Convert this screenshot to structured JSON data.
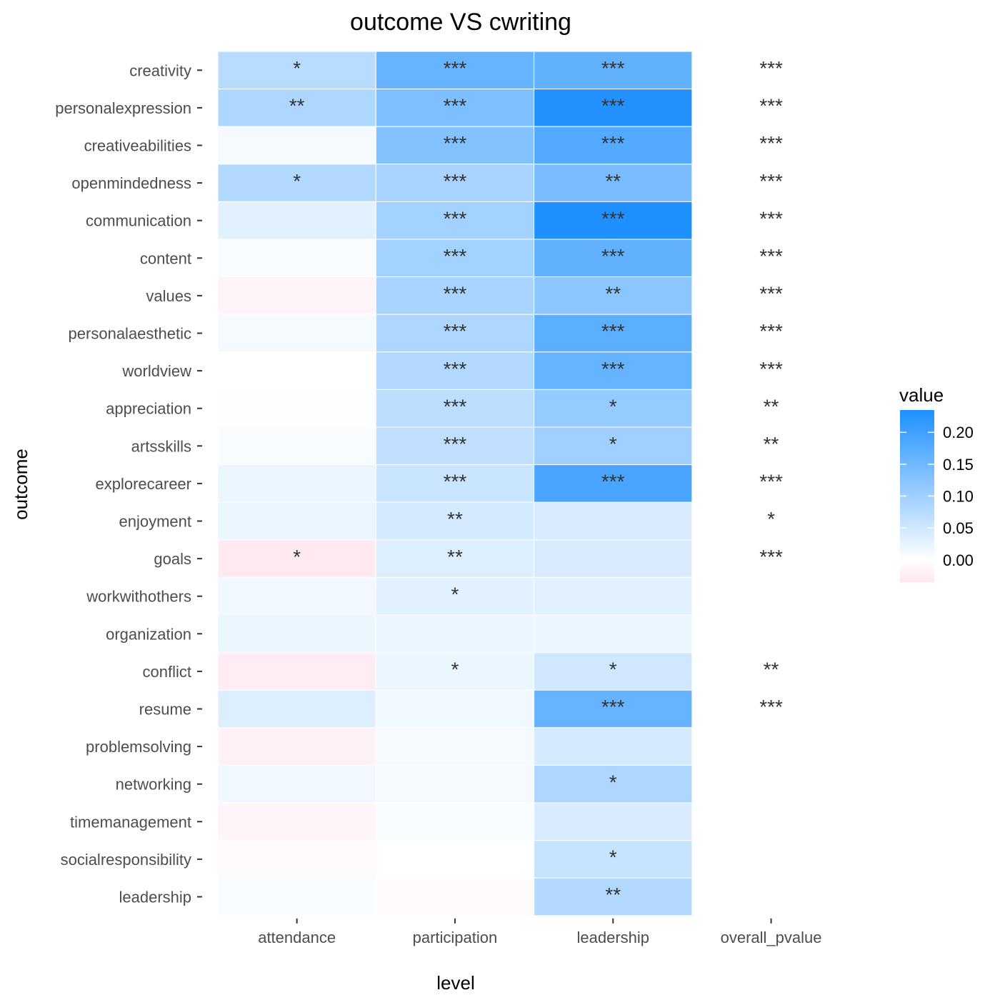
{
  "chart_data": {
    "type": "heatmap",
    "title": "outcome VS cwriting",
    "xlabel": "level",
    "ylabel": "outcome",
    "x_categories": [
      "attendance",
      "participation",
      "leadership",
      "overall_pvalue"
    ],
    "y_categories": [
      "creativity",
      "personalexpression",
      "creativeabilities",
      "openmindedness",
      "communication",
      "content",
      "values",
      "personalaesthetic",
      "worldview",
      "appreciation",
      "artsskills",
      "explorecareer",
      "enjoyment",
      "goals",
      "workwithothers",
      "organization",
      "conflict",
      "resume",
      "problemsolving",
      "networking",
      "timemanagement",
      "socialresponsibility",
      "leadership"
    ],
    "values": [
      [
        0.075,
        0.16,
        0.165,
        null
      ],
      [
        0.085,
        0.135,
        0.23,
        null
      ],
      [
        0.01,
        0.13,
        0.18,
        null
      ],
      [
        0.08,
        0.09,
        0.14,
        null
      ],
      [
        0.03,
        0.095,
        0.235,
        null
      ],
      [
        0.005,
        0.095,
        0.165,
        null
      ],
      [
        -0.015,
        0.09,
        0.12,
        null
      ],
      [
        0.01,
        0.085,
        0.17,
        null
      ],
      [
        0.0,
        0.08,
        0.16,
        null
      ],
      [
        0.003,
        0.07,
        0.11,
        null
      ],
      [
        0.007,
        0.065,
        0.1,
        null
      ],
      [
        0.02,
        0.055,
        0.19,
        null
      ],
      [
        0.02,
        0.045,
        0.04,
        null
      ],
      [
        -0.03,
        0.035,
        0.04,
        null
      ],
      [
        0.015,
        0.03,
        0.03,
        null
      ],
      [
        0.02,
        0.02,
        0.02,
        null
      ],
      [
        -0.025,
        0.02,
        0.05,
        null
      ],
      [
        0.035,
        0.015,
        0.16,
        null
      ],
      [
        -0.02,
        0.01,
        0.045,
        null
      ],
      [
        0.015,
        0.01,
        0.085,
        null
      ],
      [
        -0.015,
        0.005,
        0.04,
        null
      ],
      [
        -0.005,
        0.0,
        0.06,
        null
      ],
      [
        0.005,
        -0.005,
        0.08,
        null
      ]
    ],
    "significance": [
      [
        "*",
        "***",
        "***",
        "***"
      ],
      [
        "**",
        "***",
        "***",
        "***"
      ],
      [
        "",
        "***",
        "***",
        "***"
      ],
      [
        "*",
        "***",
        "**",
        "***"
      ],
      [
        "",
        "***",
        "***",
        "***"
      ],
      [
        "",
        "***",
        "***",
        "***"
      ],
      [
        "",
        "***",
        "**",
        "***"
      ],
      [
        "",
        "***",
        "***",
        "***"
      ],
      [
        "",
        "***",
        "***",
        "***"
      ],
      [
        "",
        "***",
        "*",
        "**"
      ],
      [
        "",
        "***",
        "*",
        "**"
      ],
      [
        "",
        "***",
        "***",
        "***"
      ],
      [
        "",
        "**",
        "",
        "*"
      ],
      [
        "*",
        "**",
        "",
        "***"
      ],
      [
        "",
        "*",
        "",
        ""
      ],
      [
        "",
        "",
        "",
        ""
      ],
      [
        "",
        "*",
        "*",
        "**"
      ],
      [
        "",
        "",
        "***",
        "***"
      ],
      [
        "",
        "",
        "",
        ""
      ],
      [
        "",
        "",
        "*",
        ""
      ],
      [
        "",
        "",
        "",
        ""
      ],
      [
        "",
        "",
        "*",
        ""
      ],
      [
        "",
        "",
        "**",
        ""
      ]
    ],
    "legend": {
      "title": "value",
      "position": "right",
      "ticks": [
        0.0,
        0.05,
        0.1,
        0.15,
        0.2
      ],
      "tick_labels": [
        "0.00",
        "0.05",
        "0.10",
        "0.15",
        "0.20"
      ],
      "range": [
        -0.035,
        0.235
      ],
      "low_color": "#ffe6ee",
      "mid_color": "#ffffff",
      "high_color": "#1e90ff"
    },
    "grid": false
  }
}
